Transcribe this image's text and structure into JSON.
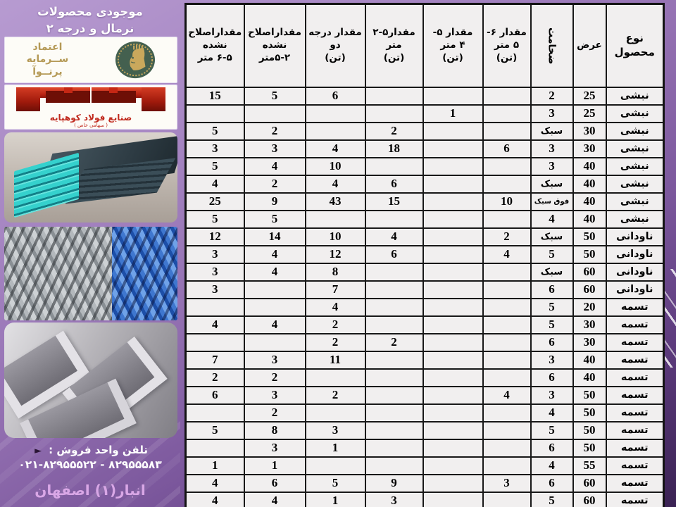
{
  "sidebar": {
    "title_line1": "موجودی  محصولات",
    "title_line2": "نرمال و درجه ۲",
    "logo_etemad": {
      "line1": "اعتماد",
      "line2": "ســرمایه",
      "line3": "پرتــوآ"
    },
    "logo_foolad": {
      "company": "صنایع فولاد کوهپایه",
      "subtitle": "( سهامی خاص )"
    },
    "sales_phone_label": "تلفن واحد فروش :",
    "arrow_bullet": "►",
    "phone_numbers": "۰۲۱-۸۲۹۵۵۵۲۲ - ۸۲۹۵۵۵۸۳",
    "warehouse": "انبار(۱) اصفهان"
  },
  "table": {
    "column_keys": [
      "type",
      "width",
      "thickness",
      "qty_6_5",
      "qty_5_4",
      "qty_5_2",
      "qty_grade2",
      "unfixed_5_2",
      "unfixed_6_5"
    ],
    "headers": {
      "type": "نوع\nمحصول",
      "width": "عرض",
      "thickness": "ضخامت",
      "qty_6_5": "مقدار ۶-\n۵ متر\n(تن)",
      "qty_5_4": "مقدار ۵-\n۴ متر\n(تن)",
      "qty_5_2": "مقدار۵-۲\nمتر\n(تن)",
      "qty_grade2": "مقدار درجه\nدو\n(تن)",
      "unfixed_5_2": "مقداراصلاح\nنشده\n۵-۲متر",
      "unfixed_6_5": "مقداراصلاح\nنشده\n۶-۵ متر"
    },
    "rows": [
      [
        "نبشی",
        "25",
        "2",
        "",
        "",
        "",
        "6",
        "5",
        "15"
      ],
      [
        "نبشی",
        "25",
        "3",
        "",
        "1",
        "",
        "",
        "",
        ""
      ],
      [
        "نبشی",
        "30",
        "سبک",
        "",
        "",
        "2",
        "",
        "2",
        "5"
      ],
      [
        "نبشی",
        "30",
        "3",
        "6",
        "",
        "18",
        "4",
        "3",
        "3"
      ],
      [
        "نبشی",
        "40",
        "3",
        "",
        "",
        "",
        "10",
        "4",
        "5"
      ],
      [
        "نبشی",
        "40",
        "سبک",
        "",
        "",
        "6",
        "4",
        "2",
        "4"
      ],
      [
        "نبشی",
        "40",
        "فوق سبک",
        "10",
        "",
        "15",
        "43",
        "9",
        "25"
      ],
      [
        "نبشی",
        "40",
        "4",
        "",
        "",
        "",
        "",
        "5",
        "5"
      ],
      [
        "ناودانی",
        "50",
        "سبک",
        "2",
        "",
        "4",
        "10",
        "14",
        "12"
      ],
      [
        "ناودانی",
        "50",
        "5",
        "4",
        "",
        "6",
        "12",
        "4",
        "3"
      ],
      [
        "ناودانی",
        "60",
        "سبک",
        "",
        "",
        "",
        "8",
        "4",
        "3"
      ],
      [
        "ناودانی",
        "60",
        "6",
        "",
        "",
        "",
        "7",
        "",
        "3"
      ],
      [
        "تسمه",
        "20",
        "5",
        "",
        "",
        "",
        "4",
        "",
        ""
      ],
      [
        "تسمه",
        "30",
        "5",
        "",
        "",
        "",
        "2",
        "4",
        "4"
      ],
      [
        "تسمه",
        "30",
        "6",
        "",
        "",
        "2",
        "2",
        "",
        ""
      ],
      [
        "تسمه",
        "40",
        "3",
        "",
        "",
        "",
        "11",
        "3",
        "7"
      ],
      [
        "تسمه",
        "40",
        "6",
        "",
        "",
        "",
        "",
        "2",
        "2"
      ],
      [
        "تسمه",
        "50",
        "3",
        "4",
        "",
        "",
        "2",
        "3",
        "6"
      ],
      [
        "تسمه",
        "50",
        "4",
        "",
        "",
        "",
        "",
        "2",
        ""
      ],
      [
        "تسمه",
        "50",
        "5",
        "",
        "",
        "",
        "3",
        "8",
        "5"
      ],
      [
        "تسمه",
        "50",
        "6",
        "",
        "",
        "",
        "1",
        "3",
        ""
      ],
      [
        "تسمه",
        "55",
        "4",
        "",
        "",
        "",
        "",
        "1",
        "1"
      ],
      [
        "تسمه",
        "60",
        "6",
        "3",
        "",
        "9",
        "5",
        "6",
        "4"
      ],
      [
        "تسمه",
        "60",
        "5",
        "",
        "",
        "3",
        "1",
        "4",
        "4"
      ]
    ]
  },
  "colors": {
    "frame_purple": "#9a6fb2",
    "cell_background": "#f1efef",
    "logo_red": "#c0291d",
    "logo_gold": "#b59a57",
    "warehouse_pink": "#d9a7e6"
  }
}
